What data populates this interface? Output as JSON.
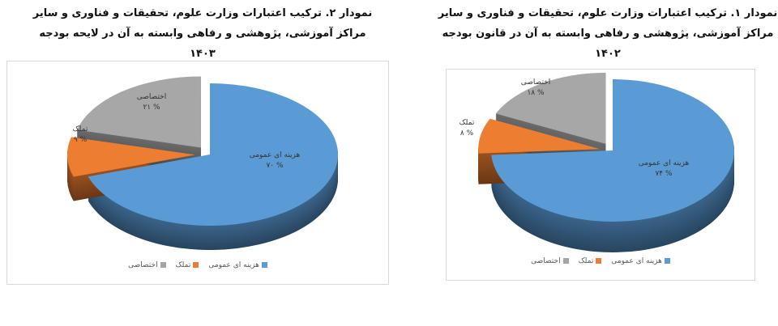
{
  "chart_data": [
    {
      "type": "pie",
      "title": "نمودار ۲. ترکیب اعتبارات وزارت علوم، تحقیقات و فناوری و سایر",
      "subtitle": "مراکز آموزشی، پژوهشی و رفاهی وابسته به آن در لایحه بودجه ۱۴۰۳",
      "categories": [
        "هزینه ای عمومی",
        "تملک",
        "اختصاصی"
      ],
      "values": [
        70,
        9,
        21
      ],
      "labels": [
        "% ۷۰",
        "% ۹",
        "% ۲۱"
      ],
      "colors": [
        "#5b9bd5",
        "#ed7d31",
        "#a5a5a5"
      ],
      "legend": "bottom",
      "style": "3d-exploded"
    },
    {
      "type": "pie",
      "title": "نمودار ۱. ترکیب اعتبارات وزارت علوم، تحقیقات و فناوری و سایر",
      "subtitle": "مراکز آموزشی، پژوهشی و رفاهی وابسته به آن در قانون بودجه ۱۴۰۲",
      "categories": [
        "هزینه ای عمومی",
        "تملک",
        "اختصاصی"
      ],
      "values": [
        74,
        8,
        18
      ],
      "labels": [
        "% ۷۴",
        "% ۸",
        "% ۱۸"
      ],
      "colors": [
        "#5b9bd5",
        "#ed7d31",
        "#a5a5a5"
      ],
      "legend": "bottom",
      "style": "3d-exploded"
    }
  ]
}
